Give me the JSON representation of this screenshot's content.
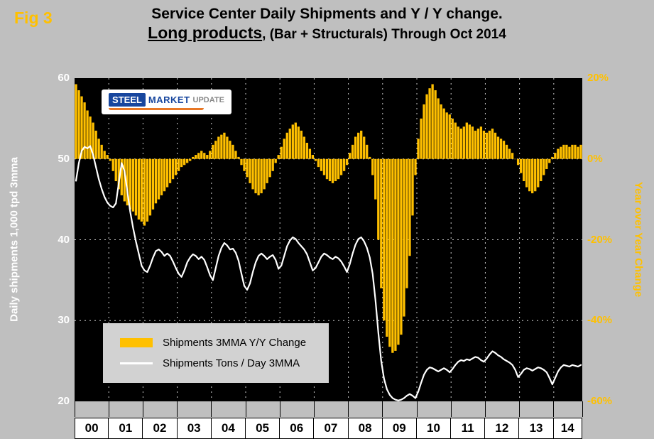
{
  "figure": {
    "fig_label": "Fig 3",
    "title_line1": "Service Center Daily Shipments and Y / Y change.",
    "title_line2_underlined": "Long products",
    "title_line2_rest": ", (Bar + Structurals) Through Oct 2014"
  },
  "logo": {
    "steel": "STEEL",
    "market": "MARKET",
    "update": "UPDATE"
  },
  "legend": {
    "items": [
      {
        "label": "Shipments 3MMA Y/Y Change",
        "swatch": "bar"
      },
      {
        "label": "Shipments Tons / Day 3MMA",
        "swatch": "line"
      }
    ]
  },
  "colors": {
    "background": "#BFBFBF",
    "plot_background": "#000000",
    "bar": "#FFC000",
    "line": "#FFFFFF",
    "left_axis_text": "#FFFFFF",
    "right_axis_text": "#FFC000",
    "legend_background": "#D2D2D2",
    "year_box_background": "#FFFFFF",
    "gridline": "#FFFFFF"
  },
  "chart_data": {
    "type": "combo",
    "x_unit": "month",
    "x_start": "Jan 2000",
    "x_end": "Oct 2014",
    "year_labels": [
      "00",
      "01",
      "02",
      "03",
      "04",
      "05",
      "06",
      "07",
      "08",
      "09",
      "10",
      "11",
      "12",
      "13",
      "14"
    ],
    "months_per_year": [
      12,
      12,
      12,
      12,
      12,
      12,
      12,
      12,
      12,
      12,
      12,
      12,
      12,
      12,
      10
    ],
    "left_axis": {
      "label": "Daily shipments 1,000 tpd 3mma",
      "min": 20,
      "max": 60,
      "ticks": [
        60,
        50,
        40,
        30,
        20
      ]
    },
    "right_axis": {
      "label": "Year over Year Change",
      "min": -60,
      "max": 20,
      "ticks": [
        20,
        0,
        -20,
        -40,
        -60
      ],
      "tick_suffix": "%"
    },
    "grid": "dashed",
    "legend_position": "inside-lower-left",
    "series": [
      {
        "name": "Shipments 3MMA Y/Y Change",
        "type": "bar",
        "axis": "right",
        "unit": "percent",
        "values": [
          18.5,
          17.0,
          15.5,
          14.0,
          12.0,
          10.5,
          9.0,
          7.0,
          5.0,
          3.5,
          2.0,
          1.0,
          -0.5,
          -3.0,
          -5.5,
          -7.5,
          -9.0,
          -10.5,
          -11.5,
          -12.5,
          -13.0,
          -14.0,
          -15.0,
          -15.5,
          -16.5,
          -15.5,
          -14.0,
          -12.5,
          -11.0,
          -10.0,
          -9.0,
          -8.0,
          -7.0,
          -6.0,
          -5.0,
          -4.0,
          -3.0,
          -2.0,
          -1.5,
          -1.0,
          -0.5,
          0.5,
          1.0,
          1.5,
          2.0,
          1.5,
          1.0,
          2.0,
          3.5,
          4.5,
          5.5,
          6.0,
          6.5,
          5.5,
          4.5,
          3.5,
          2.0,
          0.5,
          -1.5,
          -3.0,
          -4.5,
          -6.0,
          -7.5,
          -8.5,
          -9.0,
          -8.5,
          -7.5,
          -6.0,
          -4.5,
          -3.0,
          -1.0,
          1.0,
          3.0,
          5.0,
          6.5,
          7.5,
          8.5,
          9.0,
          8.0,
          7.0,
          5.5,
          4.0,
          2.5,
          1.0,
          -0.5,
          -2.0,
          -3.0,
          -4.0,
          -5.0,
          -5.5,
          -6.0,
          -5.5,
          -5.0,
          -4.0,
          -3.0,
          -1.5,
          1.5,
          3.5,
          5.5,
          6.5,
          7.0,
          5.5,
          3.5,
          0.5,
          -4.0,
          -10.0,
          -20.0,
          -32.0,
          -40.0,
          -44.0,
          -46.5,
          -48.0,
          -47.5,
          -46.0,
          -43.5,
          -39.0,
          -32.0,
          -24.0,
          -14.0,
          -4.0,
          5.0,
          10.0,
          13.5,
          16.0,
          17.5,
          18.5,
          17.0,
          15.0,
          13.5,
          12.5,
          11.5,
          11.0,
          10.0,
          9.0,
          8.0,
          7.5,
          8.0,
          9.0,
          8.5,
          8.0,
          7.0,
          7.5,
          8.0,
          7.0,
          6.5,
          7.0,
          7.5,
          6.5,
          5.5,
          5.0,
          4.5,
          3.5,
          2.5,
          1.5,
          0.0,
          -1.5,
          -3.5,
          -5.5,
          -7.0,
          -8.0,
          -8.5,
          -8.0,
          -7.0,
          -5.5,
          -4.0,
          -2.5,
          -1.0,
          0.5,
          1.5,
          2.5,
          3.0,
          3.5,
          3.5,
          3.0,
          3.5,
          3.5,
          3.0,
          3.5
        ]
      },
      {
        "name": "Shipments Tons / Day 3MMA",
        "type": "line",
        "axis": "left",
        "unit": "1,000 tons per day",
        "values": [
          47.3,
          49.5,
          51.0,
          51.5,
          51.3,
          51.6,
          50.5,
          49.0,
          47.5,
          46.3,
          45.3,
          44.6,
          44.2,
          44.0,
          44.5,
          47.0,
          49.5,
          48.5,
          46.0,
          43.5,
          41.5,
          39.8,
          38.3,
          36.8,
          36.2,
          36.0,
          36.8,
          37.8,
          38.6,
          38.8,
          38.5,
          38.0,
          38.3,
          38.0,
          37.3,
          36.5,
          35.8,
          35.4,
          36.2,
          37.2,
          37.8,
          38.2,
          38.0,
          37.6,
          37.9,
          37.5,
          36.6,
          35.6,
          35.0,
          36.5,
          38.0,
          39.0,
          39.6,
          39.3,
          38.8,
          38.9,
          38.4,
          37.4,
          35.8,
          34.3,
          33.8,
          34.6,
          36.0,
          37.2,
          38.0,
          38.3,
          38.0,
          37.6,
          37.9,
          38.1,
          37.5,
          36.4,
          36.8,
          38.0,
          39.2,
          39.9,
          40.3,
          40.1,
          39.6,
          39.2,
          38.8,
          38.2,
          37.2,
          36.2,
          36.5,
          37.2,
          37.9,
          38.3,
          38.1,
          37.8,
          37.6,
          37.9,
          37.7,
          37.3,
          36.7,
          36.0,
          37.0,
          38.3,
          39.4,
          40.1,
          40.3,
          39.8,
          39.0,
          37.8,
          35.8,
          32.5,
          28.5,
          25.0,
          22.8,
          21.5,
          20.8,
          20.4,
          20.2,
          20.1,
          20.2,
          20.4,
          20.7,
          20.9,
          20.7,
          20.4,
          21.2,
          22.3,
          23.3,
          23.9,
          24.2,
          24.1,
          23.9,
          23.7,
          23.9,
          24.1,
          23.9,
          23.6,
          24.0,
          24.5,
          24.9,
          25.1,
          25.0,
          25.2,
          25.1,
          25.3,
          25.5,
          25.4,
          25.1,
          24.9,
          25.3,
          25.8,
          26.2,
          26.0,
          25.7,
          25.5,
          25.2,
          25.0,
          24.8,
          24.5,
          23.9,
          23.0,
          23.4,
          23.9,
          24.1,
          24.0,
          23.8,
          24.0,
          24.2,
          24.1,
          23.9,
          23.6,
          22.9,
          22.1,
          22.9,
          23.7,
          24.2,
          24.5,
          24.4,
          24.3,
          24.5,
          24.4,
          24.3,
          24.5
        ]
      }
    ]
  }
}
